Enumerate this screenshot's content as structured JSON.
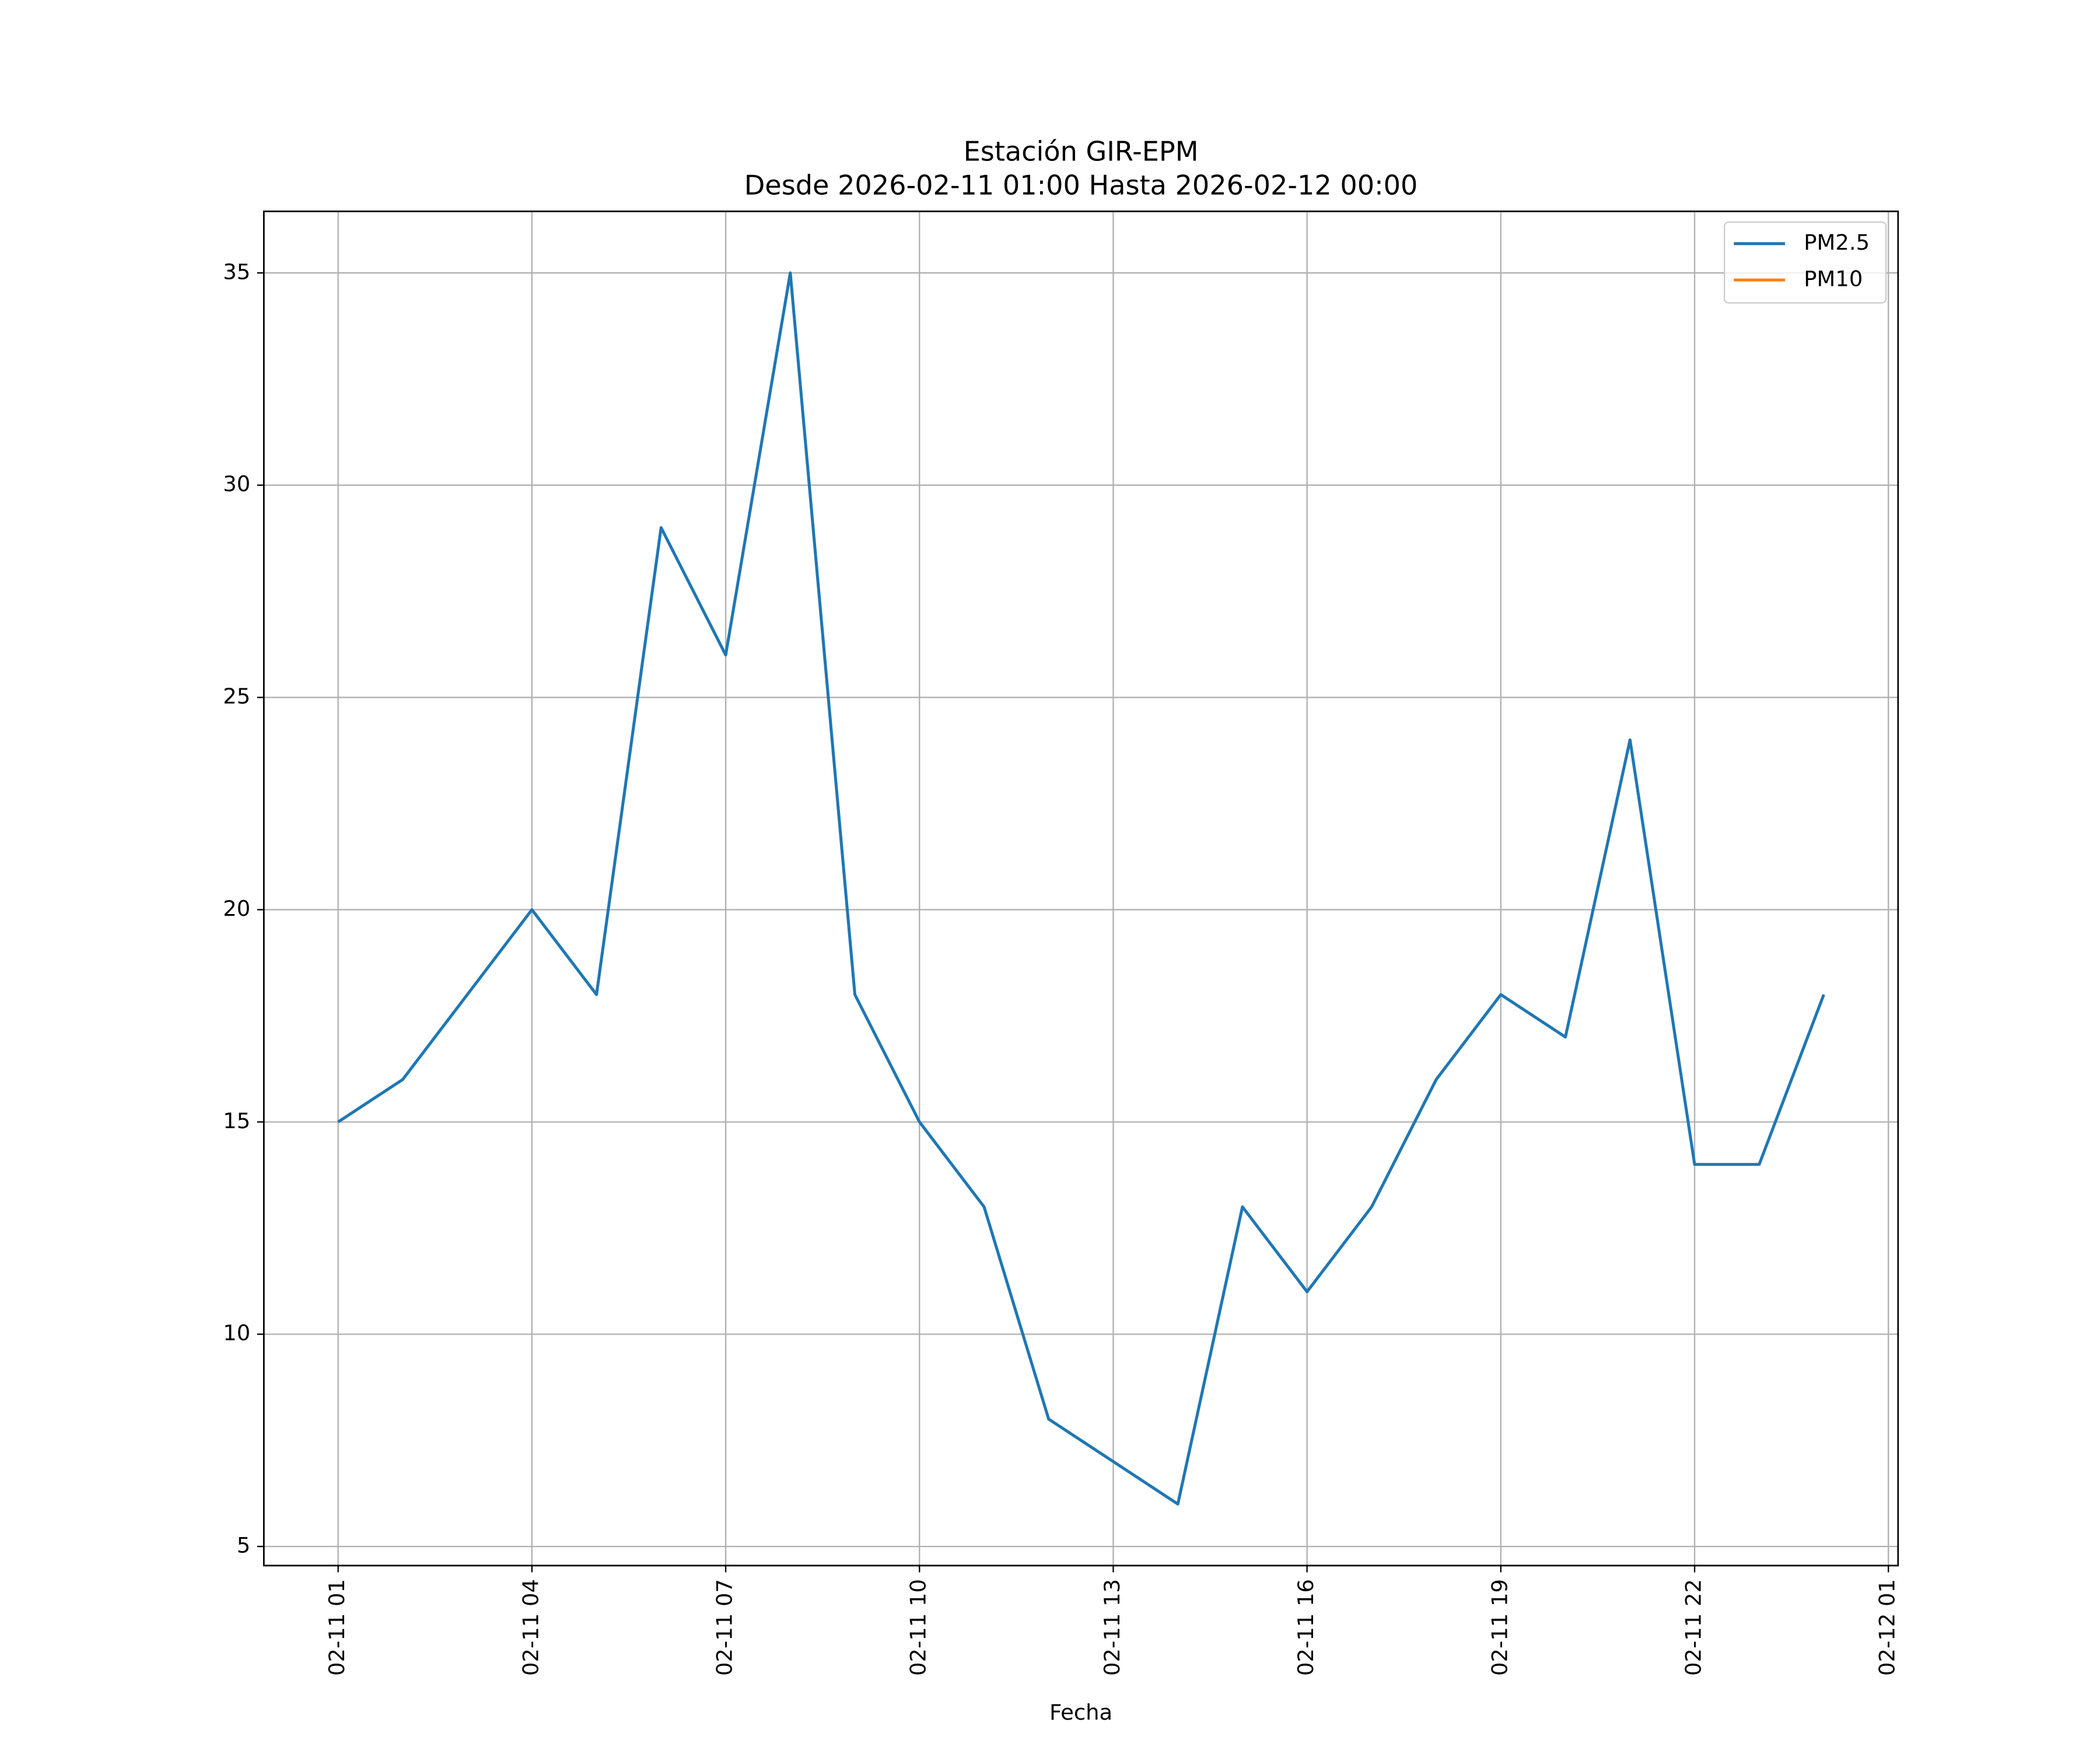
{
  "chart_data": {
    "type": "line",
    "title": "Estación GIR-EPM",
    "subtitle": "Desde 2026-02-11 01:00 Hasta 2026-02-12 00:00",
    "x_label": "Fecha",
    "x": [
      "02-11 01",
      "02-11 02",
      "02-11 03",
      "02-11 04",
      "02-11 05",
      "02-11 06",
      "02-11 07",
      "02-11 08",
      "02-11 09",
      "02-11 10",
      "02-11 11",
      "02-11 12",
      "02-11 13",
      "02-11 14",
      "02-11 15",
      "02-11 16",
      "02-11 17",
      "02-11 18",
      "02-11 19",
      "02-11 20",
      "02-11 21",
      "02-11 22",
      "02-11 23",
      "02-12 00"
    ],
    "series": [
      {
        "name": "PM2.5",
        "color": "#1f77b4",
        "values": [
          15,
          16,
          18,
          20,
          18,
          29,
          26,
          35,
          18,
          15,
          13,
          8,
          7,
          6,
          13,
          11,
          13,
          16,
          18,
          17,
          24,
          14,
          14,
          18
        ]
      },
      {
        "name": "PM10",
        "color": "#ff7f0e",
        "values": [
          null,
          null,
          null,
          null,
          null,
          null,
          null,
          null,
          null,
          null,
          null,
          null,
          null,
          null,
          null,
          null,
          null,
          null,
          null,
          null,
          null,
          null,
          null,
          null
        ]
      }
    ],
    "xlim": [
      "02-11 01",
      "02-12 00"
    ],
    "xticks": [
      "02-11 01",
      "02-11 04",
      "02-11 07",
      "02-11 10",
      "02-11 13",
      "02-11 16",
      "02-11 19",
      "02-11 22",
      "02-12 01"
    ],
    "ylim": [
      4.55,
      36.45
    ],
    "yticks": [
      5,
      10,
      15,
      20,
      25,
      30,
      35
    ],
    "grid": true,
    "legend": "upper right"
  }
}
